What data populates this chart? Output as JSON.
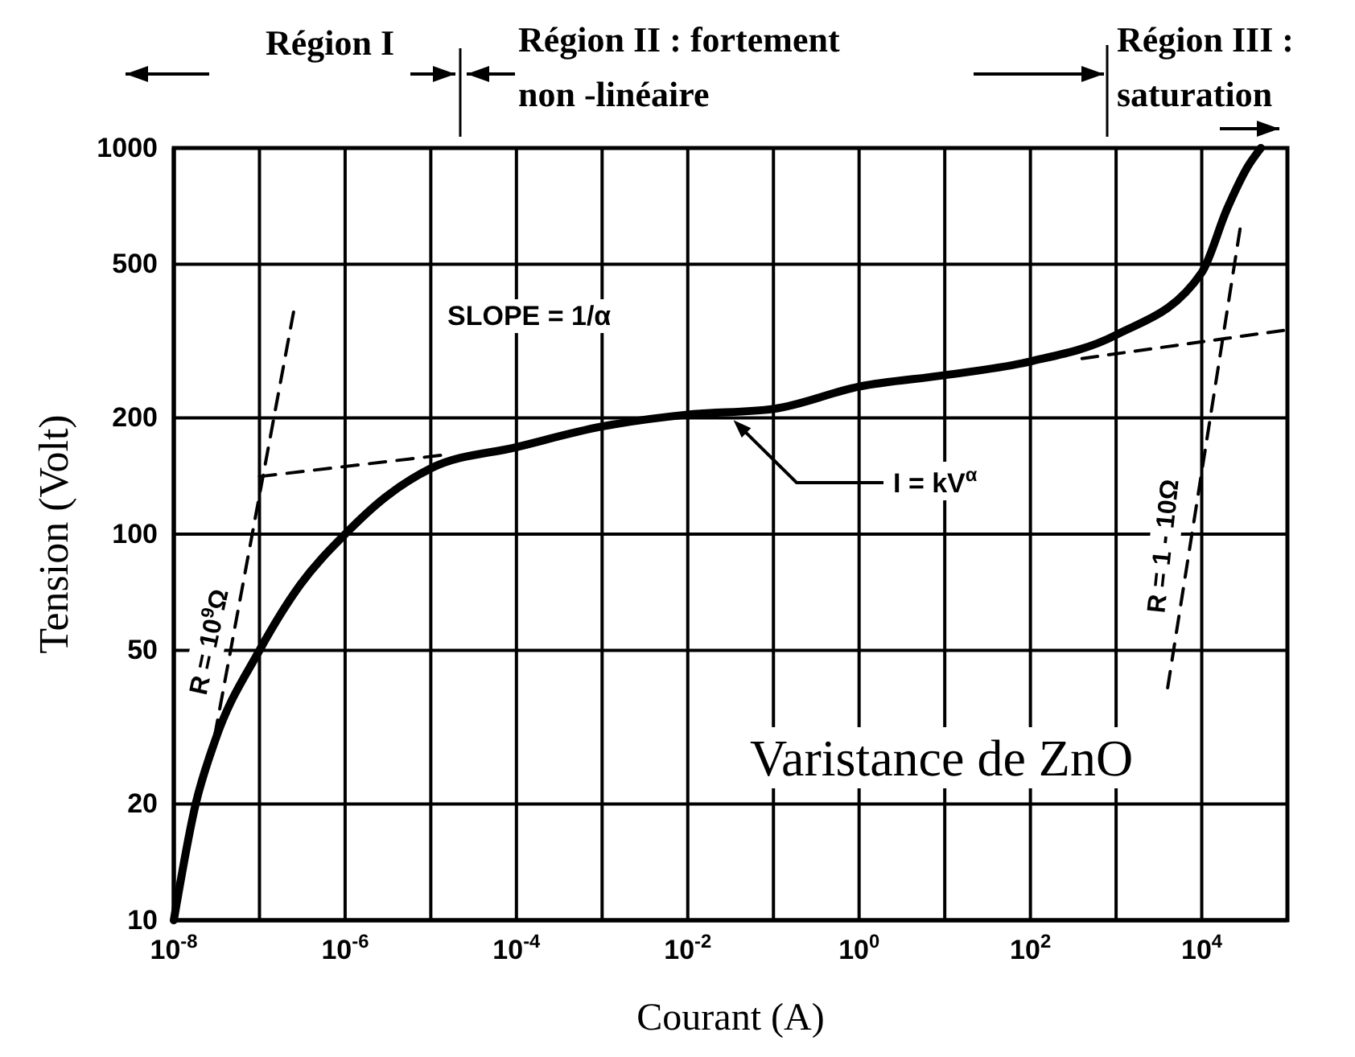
{
  "chart_data": {
    "type": "line",
    "xlabel": "Courant (A)",
    "ylabel": "Tension (Volt)",
    "log": "xy",
    "grid": true,
    "marker": "none",
    "xlim": [
      1e-08,
      100000.0
    ],
    "ylim": [
      10,
      1000
    ],
    "xticks": [
      {
        "value": 1e-08,
        "label": "10$^{-8}$"
      },
      {
        "value": 1e-07,
        "label": null
      },
      {
        "value": 1e-06,
        "label": "10$^{-6}$"
      },
      {
        "value": 1e-05,
        "label": null
      },
      {
        "value": 0.0001,
        "label": "10$^{-4}$"
      },
      {
        "value": 0.001,
        "label": null
      },
      {
        "value": 0.01,
        "label": "10$^{-2}$"
      },
      {
        "value": 0.1,
        "label": null
      },
      {
        "value": 1,
        "label": "10$^{0}$"
      },
      {
        "value": 10,
        "label": null
      },
      {
        "value": 100,
        "label": "10$^{2}$"
      },
      {
        "value": 1000,
        "label": null
      },
      {
        "value": 10000,
        "label": "10$^{4}$"
      }
    ],
    "yticks": [
      10,
      20,
      50,
      100,
      200,
      500,
      1000
    ],
    "series": [
      {
        "color": "#000000",
        "line_style": "solid",
        "x": [
          1e-08,
          1.8e-08,
          3e-08,
          1e-07,
          3e-07,
          1e-06,
          3e-06,
          1e-05,
          0.0001,
          0.001,
          0.01,
          0.1,
          1,
          10,
          100,
          1000,
          10000,
          20000,
          35000,
          49000
        ],
        "values": [
          10,
          20,
          29,
          50,
          74,
          100,
          125,
          148,
          168,
          190,
          204,
          211,
          241,
          258,
          280,
          328,
          476,
          700,
          900,
          1000
        ]
      },
      {
        "color": "#000000",
        "line_style": "dashed",
        "x": [
          3e-08,
          2.5e-07
        ],
        "values": [
          30,
          376
        ]
      },
      {
        "color": "#000000",
        "line_style": "dashed",
        "x": [
          1e-07,
          1.3e-05
        ],
        "values": [
          141,
          160
        ]
      },
      {
        "color": "#000000",
        "line_style": "dashed",
        "x": [
          4000,
          28000
        ],
        "values": [
          40,
          617
        ]
      },
      {
        "color": "#000000",
        "line_style": "dashed",
        "x": [
          400,
          90000
        ],
        "values": [
          285,
          337
        ]
      }
    ],
    "annotations": [
      "Région I",
      "Région II : fortement non -linéaire",
      "Région III : saturation",
      "SLOPE = 1/α",
      {
        "text": "I = kV$^{α}$",
        "x": 0.03,
        "y": 205
      },
      "R = 10$^{9}$Ω",
      "R = 1 - 10Ω",
      "Varistance de ZnO"
    ]
  }
}
